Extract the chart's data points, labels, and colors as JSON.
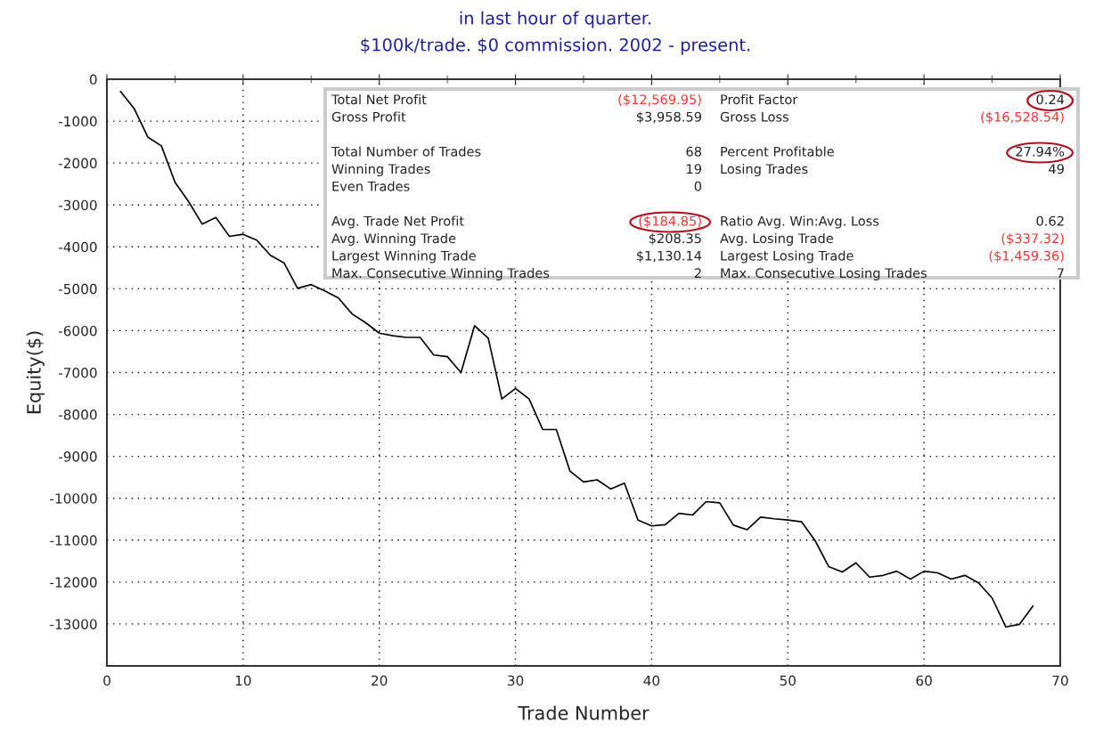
{
  "chart_data": {
    "type": "line",
    "title": "in last hour of quarter.",
    "subtitle": "$100k/trade. $0 commission. 2002 - present.",
    "xlabel": "Trade Number",
    "ylabel": "Equity($)",
    "x": [
      1,
      2,
      3,
      4,
      5,
      6,
      7,
      8,
      9,
      10,
      11,
      12,
      13,
      14,
      15,
      16,
      17,
      18,
      19,
      20,
      21,
      22,
      23,
      24,
      25,
      26,
      27,
      28,
      29,
      30,
      31,
      32,
      33,
      34,
      35,
      36,
      37,
      38,
      39,
      40,
      41,
      42,
      43,
      44,
      45,
      46,
      47,
      48,
      49,
      50,
      51,
      52,
      53,
      54,
      55,
      56,
      57,
      58,
      59,
      60,
      61,
      62,
      63,
      64,
      65,
      66,
      67,
      68
    ],
    "series": [
      {
        "color": "#000000",
        "values": [
          -290,
          -700,
          -1380,
          -1590,
          -2460,
          -2920,
          -3460,
          -3300,
          -3750,
          -3700,
          -3840,
          -4200,
          -4380,
          -4990,
          -4900,
          -5050,
          -5220,
          -5600,
          -5810,
          -6060,
          -6120,
          -6160,
          -6160,
          -6580,
          -6620,
          -7000,
          -5880,
          -6180,
          -7630,
          -7380,
          -7630,
          -8360,
          -8360,
          -9350,
          -9610,
          -9560,
          -9780,
          -9640,
          -10520,
          -10660,
          -10630,
          -10360,
          -10400,
          -10080,
          -10110,
          -10640,
          -10750,
          -10450,
          -10490,
          -10520,
          -10560,
          -11010,
          -11630,
          -11760,
          -11540,
          -11880,
          -11840,
          -11740,
          -11930,
          -11740,
          -11780,
          -11930,
          -11840,
          -12020,
          -12380,
          -13070,
          -13010,
          -12570
        ]
      }
    ],
    "xlim": [
      0,
      70
    ],
    "xticks": [
      0,
      10,
      20,
      30,
      40,
      50,
      60,
      70
    ],
    "ylim": [
      -14000,
      0
    ],
    "yticks": [
      0,
      -1000,
      -2000,
      -3000,
      -4000,
      -5000,
      -6000,
      -7000,
      -8000,
      -9000,
      -10000,
      -11000,
      -12000,
      -13000
    ],
    "grid": true,
    "line_style": "solid",
    "marker": "none",
    "annotations": [
      "Total Net Profit",
      "($12,569.95)",
      "Profit Factor",
      "0.24",
      "Gross Profit",
      "$3,958.59",
      "Gross Loss",
      "($16,528.54)",
      "Total Number of Trades",
      "68",
      "Percent Profitable",
      "27.94%",
      "Winning Trades",
      "19",
      "Losing Trades",
      "49",
      "Even Trades",
      "0",
      "Avg. Trade Net Profit",
      "($184.85)",
      "Ratio Avg. Win:Avg. Loss",
      "0.62",
      "Avg. Winning Trade",
      "$208.35",
      "Avg. Losing Trade",
      "($337.32)",
      "Largest Winning Trade",
      "$1,130.14",
      "Largest Losing Trade",
      "($1,459.36)",
      "Max. Consecutive Winning Trades",
      "2",
      "Max. Consecutive Losing Trades",
      "7"
    ]
  }
}
